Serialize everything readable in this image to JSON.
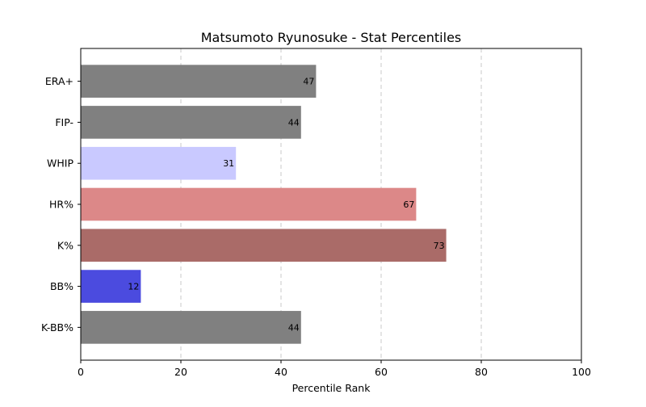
{
  "chart_data": {
    "type": "bar",
    "orientation": "horizontal",
    "title": "Matsumoto Ryunosuke - Stat Percentiles",
    "xlabel": "Percentile Rank",
    "ylabel": "",
    "xlim": [
      0,
      100
    ],
    "xticks": [
      0,
      20,
      40,
      60,
      80,
      100
    ],
    "grid": "x-dashed",
    "categories": [
      "ERA+",
      "FIP-",
      "WHIP",
      "HR%",
      "K%",
      "BB%",
      "K-BB%"
    ],
    "values": [
      47,
      44,
      31,
      67,
      73,
      12,
      44
    ],
    "colors": [
      "#808080",
      "#808080",
      "#c9c9ff",
      "#dc8888",
      "#aa6b68",
      "#4b4bdf",
      "#808080"
    ]
  }
}
